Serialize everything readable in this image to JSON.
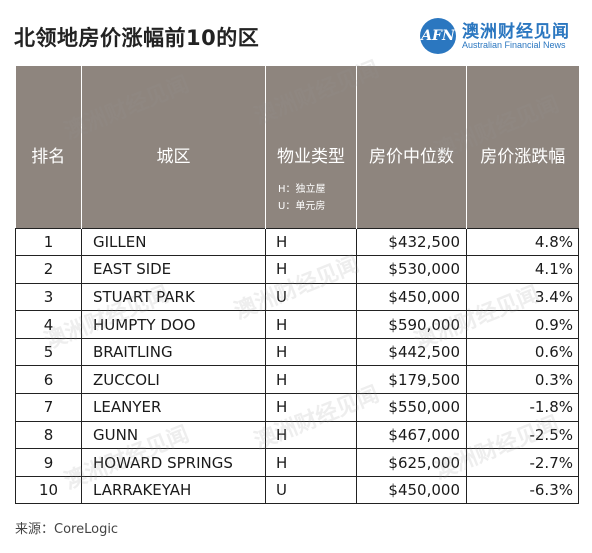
{
  "title": "北领地房价涨幅前10的区",
  "brand": {
    "logo_text": "AFN",
    "name_cn": "澳洲财经见闻",
    "name_en": "Australian Financial News",
    "color": "#2b77c0"
  },
  "header_color": "#8e857e",
  "columns": {
    "rank": "排名",
    "district": "城区",
    "type": "物业类型",
    "price": "房价中位数",
    "change": "房价涨跌幅"
  },
  "type_legend": [
    "H：独立屋",
    "U：单元房"
  ],
  "source": {
    "label": "来源：",
    "value": "CoreLogic"
  },
  "chart_data": {
    "type": "table",
    "title": "北领地房价涨幅前10的区",
    "columns": [
      "排名",
      "城区",
      "物业类型",
      "房价中位数",
      "房价涨跌幅"
    ],
    "rows": [
      {
        "rank": "1",
        "district": "GILLEN",
        "type": "H",
        "price": "$432,500",
        "change": "4.8%"
      },
      {
        "rank": "2",
        "district": "EAST SIDE",
        "type": "H",
        "price": "$530,000",
        "change": "4.1%"
      },
      {
        "rank": "3",
        "district": "STUART PARK",
        "type": "U",
        "price": "$450,000",
        "change": "3.4%"
      },
      {
        "rank": "4",
        "district": "HUMPTY DOO",
        "type": "H",
        "price": "$590,000",
        "change": "0.9%"
      },
      {
        "rank": "5",
        "district": "BRAITLING",
        "type": "H",
        "price": "$442,500",
        "change": "0.6%"
      },
      {
        "rank": "6",
        "district": "ZUCCOLI",
        "type": "H",
        "price": "$179,500",
        "change": "0.3%"
      },
      {
        "rank": "7",
        "district": "LEANYER",
        "type": "H",
        "price": "$550,000",
        "change": "-1.8%"
      },
      {
        "rank": "8",
        "district": "GUNN",
        "type": "H",
        "price": "$467,000",
        "change": "-2.5%"
      },
      {
        "rank": "9",
        "district": "HOWARD SPRINGS",
        "type": "H",
        "price": "$625,000",
        "change": "-2.7%"
      },
      {
        "rank": "10",
        "district": "LARRAKEYAH",
        "type": "U",
        "price": "$450,000",
        "change": "-6.3%"
      }
    ]
  }
}
